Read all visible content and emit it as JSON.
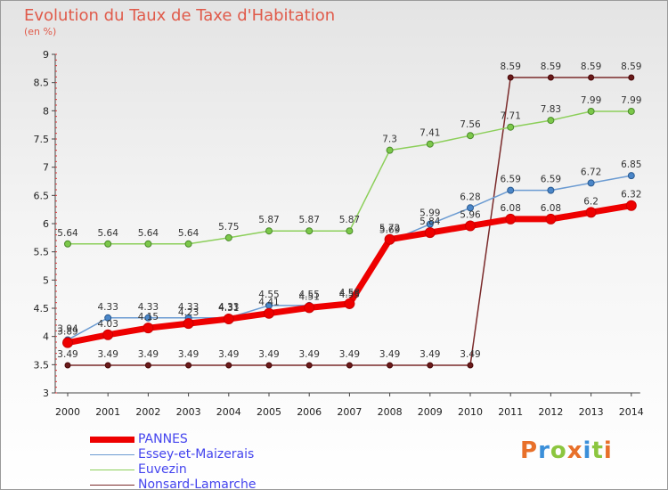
{
  "title": "Evolution du Taux de Taxe d'Habitation",
  "subtitle": "(en %)",
  "logo": "Proxiti",
  "chart_data": {
    "type": "line",
    "x": [
      "2000",
      "2001",
      "2002",
      "2003",
      "2004",
      "2005",
      "2006",
      "2007",
      "2008",
      "2009",
      "2010",
      "2011",
      "2012",
      "2013",
      "2014"
    ],
    "ylim": [
      3,
      9
    ],
    "yticks": [
      3,
      3.5,
      4,
      4.5,
      5,
      5.5,
      6,
      6.5,
      7,
      7.5,
      8,
      8.5,
      9
    ],
    "legend_position": "bottom-left",
    "grid": false,
    "series": [
      {
        "name": "PANNES",
        "color": "#ee0000",
        "values": [
          3.89,
          4.03,
          4.15,
          4.23,
          4.31,
          4.41,
          4.51,
          4.58,
          5.72,
          5.84,
          5.96,
          6.08,
          6.08,
          6.2,
          6.32
        ],
        "labels": [
          "3.89",
          "4.03",
          "4.15",
          "4.23",
          "4.31",
          "4.41",
          "4.51",
          "4.58",
          "5.72",
          "5.84",
          "5.96",
          "6.08",
          "6.08",
          "6.2",
          "6.32"
        ]
      },
      {
        "name": "Essey-et-Maizerais",
        "color": "#6b9bd2",
        "values": [
          3.94,
          4.33,
          4.33,
          4.33,
          4.33,
          4.55,
          4.55,
          4.55,
          5.69,
          5.99,
          6.28,
          6.59,
          6.59,
          6.72,
          6.85
        ],
        "labels": [
          "3.94",
          "4.33",
          "4.33",
          "4.33",
          "4.33",
          "4.55",
          "4.55",
          "4.55",
          "5.69",
          "5.99",
          "6.28",
          "6.59",
          "6.59",
          "6.72",
          "6.85"
        ]
      },
      {
        "name": "Euvezin",
        "color": "#8ccf5a",
        "values": [
          5.64,
          5.64,
          5.64,
          5.64,
          5.75,
          5.87,
          5.87,
          5.87,
          7.3,
          7.41,
          7.56,
          7.71,
          7.83,
          7.99,
          7.99
        ],
        "labels": [
          "5.64",
          "5.64",
          "5.64",
          "5.64",
          "5.75",
          "5.87",
          "5.87",
          "5.87",
          "7.3",
          "7.41",
          "7.56",
          "7.71",
          "7.83",
          "7.99",
          "7.99"
        ]
      },
      {
        "name": "Nonsard-Lamarche",
        "color": "#7a2a2a",
        "values": [
          3.49,
          3.49,
          3.49,
          3.49,
          3.49,
          3.49,
          3.49,
          3.49,
          3.49,
          3.49,
          3.49,
          8.59,
          8.59,
          8.59,
          8.59
        ],
        "labels": [
          "3.49",
          "3.49",
          "3.49",
          "3.49",
          "3.49",
          "3.49",
          "3.49",
          "3.49",
          "3.49",
          "3.49",
          "3.49",
          "8.59",
          "8.59",
          "8.59",
          "8.59"
        ]
      }
    ]
  }
}
